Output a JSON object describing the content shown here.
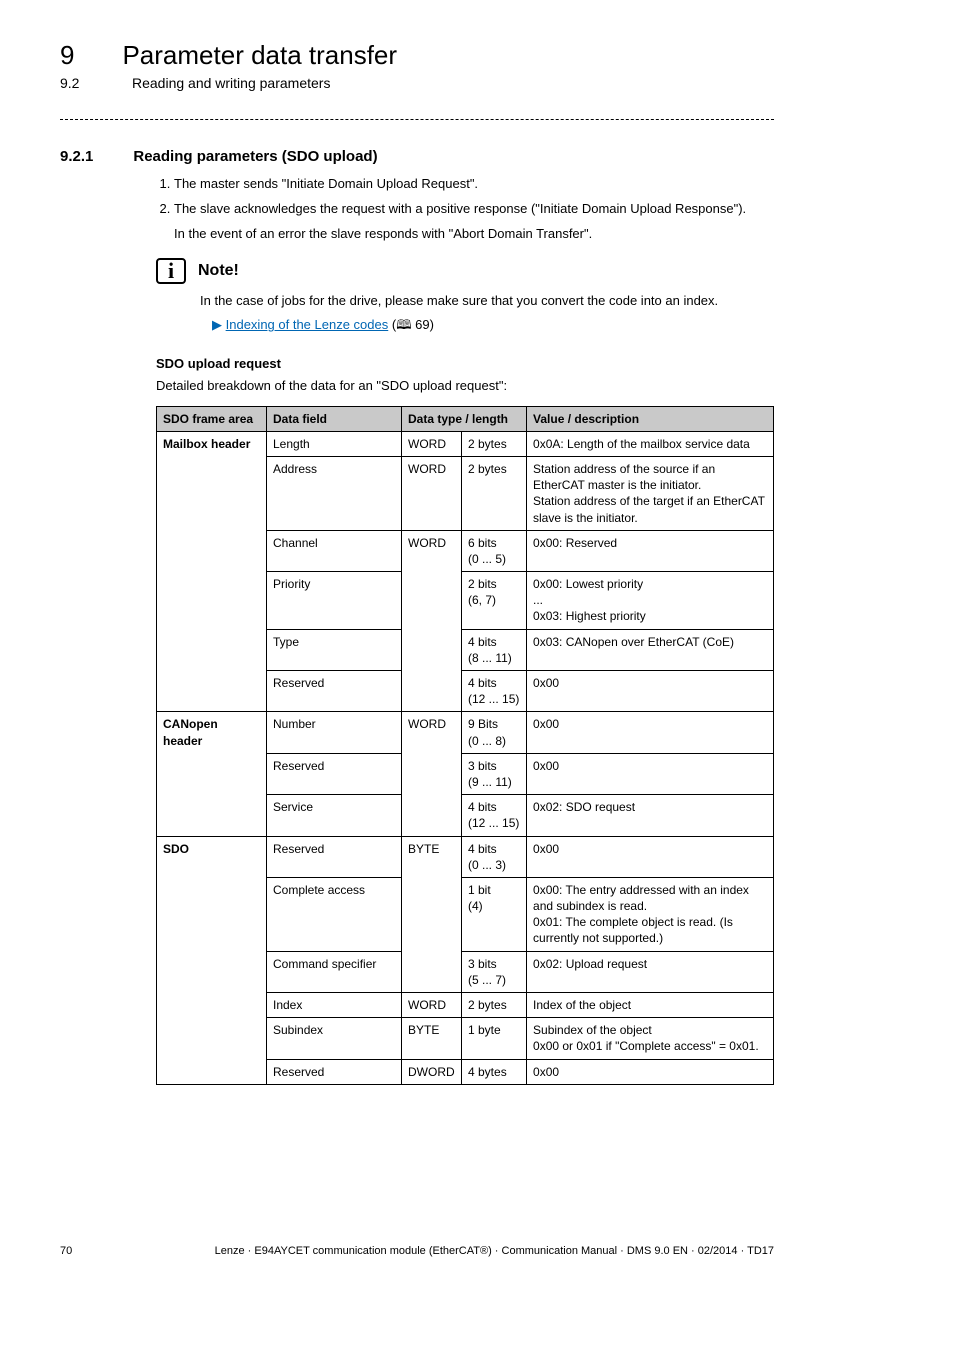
{
  "chapter": {
    "num": "9",
    "title": "Parameter data transfer"
  },
  "section": {
    "num": "9.2",
    "title": "Reading and writing parameters"
  },
  "subsection": {
    "num": "9.2.1",
    "title": "Reading parameters (SDO upload)"
  },
  "steps": {
    "s1": "The master sends \"Initiate Domain Upload Request\".",
    "s2": "The slave acknowledges the request with a positive response (\"Initiate Domain Upload Response\").",
    "s2_note": "In the event of an error the slave responds with \"Abort Domain Transfer\"."
  },
  "note": {
    "label": "Note!",
    "text": "In the case of jobs for the drive, please make sure that you convert the code into an index.",
    "link_text": "Indexing of the Lenze codes",
    "link_page": "69"
  },
  "sdo_upload": {
    "heading": "SDO upload request",
    "intro": "Detailed breakdown of the data for an \"SDO upload request\":"
  },
  "table": {
    "header": {
      "area": "SDO frame area",
      "field": "Data field",
      "type": "Data type / length",
      "desc": "Value / description"
    },
    "mailbox_label": "Mailbox header",
    "canopen_label": "CANopen header",
    "sdo_label": "SDO",
    "mailbox": {
      "length": {
        "field": "Length",
        "type": "WORD",
        "len": "2 bytes",
        "desc": "0x0A: Length of the mailbox service data"
      },
      "address": {
        "field": "Address",
        "type": "WORD",
        "len": "2 bytes",
        "desc": "Station address of the source if an EtherCAT master is the initiator.\nStation address of the target if an EtherCAT slave is the initiator."
      },
      "channel": {
        "field": "Channel",
        "type": "WORD",
        "len": "6 bits\n(0 ... 5)",
        "desc": "0x00: Reserved"
      },
      "priority": {
        "field": "Priority",
        "len": "2 bits\n(6, 7)",
        "desc": "0x00: Lowest priority\n...\n0x03: Highest priority"
      },
      "ctype": {
        "field": "Type",
        "len": "4 bits\n(8 ... 11)",
        "desc": "0x03: CANopen over EtherCAT (CoE)"
      },
      "reserved": {
        "field": "Reserved",
        "len": "4 bits\n(12 ... 15)",
        "desc": "0x00"
      }
    },
    "canopen": {
      "number": {
        "field": "Number",
        "type": "WORD",
        "len": "9 Bits\n(0 ... 8)",
        "desc": "0x00"
      },
      "reserved": {
        "field": "Reserved",
        "len": "3 bits\n(9 ... 11)",
        "desc": "0x00"
      },
      "service": {
        "field": "Service",
        "len": "4 bits\n(12 ... 15)",
        "desc": "0x02: SDO request"
      }
    },
    "sdo": {
      "reserved": {
        "field": "Reserved",
        "type": "BYTE",
        "len": "4 bits\n(0 ... 3)",
        "desc": "0x00"
      },
      "complete": {
        "field": "Complete access",
        "len": "1 bit\n(4)",
        "desc": "0x00: The entry addressed with an index and subindex is read.\n0x01: The complete object is read. (Is currently not supported.)"
      },
      "cmd": {
        "field": "Command specifier",
        "len": "3 bits\n(5 ... 7)",
        "desc": "0x02: Upload request"
      },
      "index": {
        "field": "Index",
        "type": "WORD",
        "len": "2 bytes",
        "desc": "Index of the object"
      },
      "subindex": {
        "field": "Subindex",
        "type": "BYTE",
        "len": "1 byte",
        "desc": "Subindex of the object\n0x00 or 0x01 if \"Complete access\" = 0x01."
      },
      "reserved2": {
        "field": "Reserved",
        "type": "DWORD",
        "len": "4 bytes",
        "desc": "0x00"
      }
    }
  },
  "footer": {
    "page": "70",
    "text": "Lenze · E94AYCET communication module (EtherCAT®) · Communication Manual · DMS 9.0 EN · 02/2014 · TD17"
  }
}
